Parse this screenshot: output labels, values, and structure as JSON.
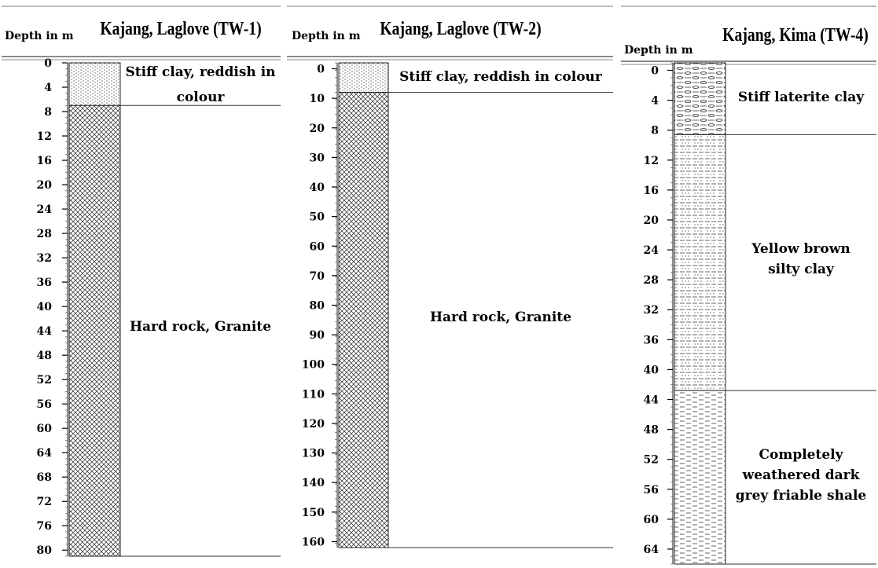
{
  "logs": [
    {
      "title": "Kajang, Laglove (TW-1)",
      "depth_label": "Depth in m",
      "ticks": [
        0,
        4,
        8,
        12,
        16,
        20,
        24,
        28,
        32,
        36,
        40,
        44,
        48,
        52,
        56,
        60,
        64,
        68,
        72,
        76,
        80
      ],
      "depth_range": [
        0,
        81
      ],
      "layers": [
        {
          "top": 0,
          "bottom": 7,
          "pattern": "fine-dots",
          "label": [
            "Stiff clay, reddish in",
            "colour"
          ]
        },
        {
          "top": 7,
          "bottom": 81,
          "pattern": "hatch",
          "label": [
            "Hard rock, Granite"
          ]
        }
      ]
    },
    {
      "title": "Kajang, Laglove (TW-2)",
      "depth_label": "Depth in m",
      "ticks": [
        0,
        10,
        20,
        30,
        40,
        50,
        60,
        70,
        80,
        90,
        100,
        110,
        120,
        130,
        140,
        150,
        160
      ],
      "depth_range": [
        -2,
        162
      ],
      "layers": [
        {
          "top": -2,
          "bottom": 8,
          "pattern": "fine-dots",
          "label": [
            "Stiff clay, reddish in colour"
          ]
        },
        {
          "top": 8,
          "bottom": 162,
          "pattern": "hatch",
          "label": [
            "Hard rock, Granite"
          ]
        }
      ]
    },
    {
      "title": "Kajang, Kima (TW-4)",
      "depth_label": "Depth in m",
      "ticks": [
        0,
        4,
        8,
        12,
        16,
        20,
        24,
        28,
        32,
        36,
        40,
        44,
        48,
        52,
        56,
        60,
        64
      ],
      "depth_range": [
        -1,
        66
      ],
      "layers": [
        {
          "top": -1,
          "bottom": 8.6,
          "pattern": "ovals",
          "label": [
            "Stiff laterite clay"
          ]
        },
        {
          "top": 8.6,
          "bottom": 42.8,
          "pattern": "dashes-dots",
          "label": [
            "Yellow brown",
            "silty clay"
          ]
        },
        {
          "top": 42.8,
          "bottom": 66,
          "pattern": "dashes",
          "label": [
            "Completely",
            "weathered dark",
            "grey friable shale"
          ]
        }
      ]
    }
  ]
}
